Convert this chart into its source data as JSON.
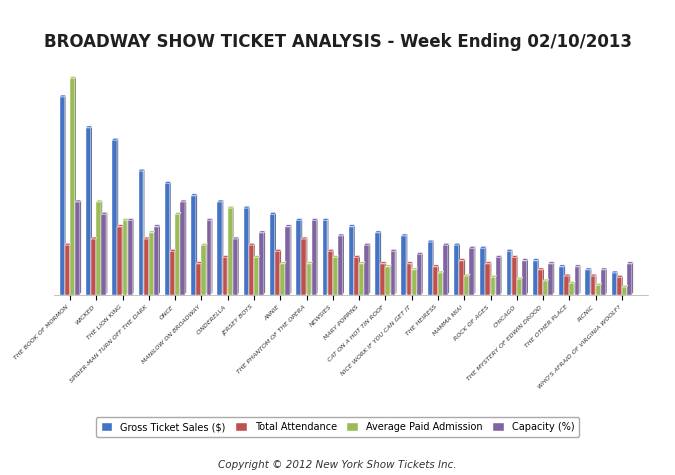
{
  "title": "BROADWAY SHOW TICKET ANALYSIS - Week Ending 02/10/2013",
  "copyright": "Copyright © 2012 New York Show Tickets Inc.",
  "shows": [
    "THE BOOK OF MORMON",
    "WICKED",
    "THE LION KING",
    "SPIDER-MAN TURN OFF THE DARK",
    "ONCE",
    "MANILOW ON BROADWAY",
    "CINDERELLA",
    "JERSEY BOYS",
    "ANNIE",
    "THE PHANTOM OF THE OPERA",
    "NEWSIES",
    "MARY POPPINS",
    "CAT ON A HOT TIN ROOF",
    "NICE WORK IF YOU CAN GET IT",
    "THE HEIRESS",
    "MAMMA MIA!",
    "ROCK OF AGES",
    "CHICAGO",
    "THE MYSTERY OF EDWIN DROOD",
    "THE OTHER PLACE",
    "PICNIC",
    "WHO'S AFRAID OF VIRGINIA WOOLF?"
  ],
  "series": {
    "Gross Ticket Sales ($)": {
      "color": "#4472C4",
      "values": [
        3.2,
        2.7,
        2.5,
        2.0,
        1.8,
        1.6,
        1.5,
        1.4,
        1.3,
        1.2,
        1.2,
        1.1,
        1.0,
        0.95,
        0.85,
        0.8,
        0.75,
        0.7,
        0.55,
        0.45,
        0.4,
        0.35
      ]
    },
    "Total Attendance": {
      "color": "#C0504D",
      "values": [
        0.8,
        0.9,
        1.1,
        0.9,
        0.7,
        0.5,
        0.6,
        0.8,
        0.7,
        0.9,
        0.7,
        0.6,
        0.5,
        0.5,
        0.45,
        0.55,
        0.5,
        0.6,
        0.4,
        0.3,
        0.3,
        0.28
      ]
    },
    "Average Paid Admission": {
      "color": "#9BBB59",
      "values": [
        3.5,
        1.5,
        1.2,
        1.0,
        1.3,
        0.8,
        1.4,
        0.6,
        0.5,
        0.5,
        0.6,
        0.5,
        0.45,
        0.4,
        0.35,
        0.3,
        0.28,
        0.25,
        0.22,
        0.18,
        0.15,
        0.12
      ]
    },
    "Capacity (%)": {
      "color": "#8064A2",
      "values": [
        1.5,
        1.3,
        1.2,
        1.1,
        1.5,
        1.2,
        0.9,
        1.0,
        1.1,
        1.2,
        0.95,
        0.8,
        0.7,
        0.65,
        0.8,
        0.75,
        0.6,
        0.55,
        0.5,
        0.45,
        0.4,
        0.5
      ]
    }
  },
  "legend_labels": [
    "Gross Ticket Sales ($)",
    "Total Attendance",
    "Average Paid Admission",
    "Capacity (%)"
  ],
  "legend_colors": [
    "#4472C4",
    "#C0504D",
    "#9BBB59",
    "#8064A2"
  ],
  "bar_depth": 0.3,
  "bar_width": 0.18,
  "ylim": [
    0,
    4.0
  ],
  "background_color": "#FFFFFF",
  "title_color": "#1F1F1F",
  "title_fontsize": 12
}
